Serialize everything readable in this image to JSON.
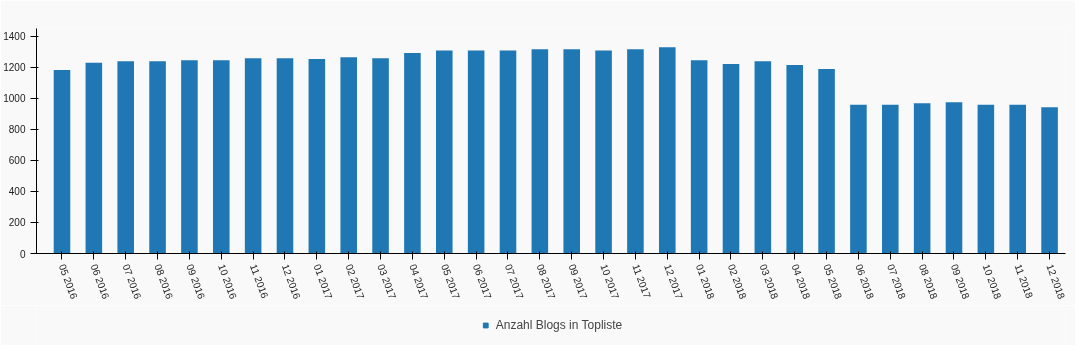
{
  "chart_data": {
    "type": "bar",
    "categories": [
      "05 2016",
      "06 2016",
      "07 2016",
      "08 2016",
      "09 2016",
      "10 2016",
      "11 2016",
      "12 2016",
      "01 2017",
      "02 2017",
      "03 2017",
      "04 2017",
      "05 2017",
      "06 2017",
      "07 2017",
      "08 2017",
      "09 2017",
      "10 2017",
      "11 2017",
      "12 2017",
      "01 2018",
      "02 2018",
      "03 2018",
      "04 2018",
      "05 2018",
      "06 2018",
      "07 2018",
      "08 2018",
      "09 2018",
      "10 2018",
      "11 2018",
      "12 2018"
    ],
    "series": [
      {
        "name": "Anzahl Blogs in Topliste",
        "color": "#1f77b4",
        "values": [
          1182,
          1229,
          1239,
          1239,
          1246,
          1246,
          1259,
          1259,
          1253,
          1265,
          1259,
          1292,
          1309,
          1309,
          1309,
          1316,
          1316,
          1309,
          1316,
          1329,
          1246,
          1222,
          1239,
          1215,
          1189,
          959,
          959,
          968,
          975,
          959,
          959,
          942
        ]
      }
    ],
    "ylim": [
      0,
      1450
    ],
    "yticks": [
      0,
      200,
      400,
      600,
      800,
      1000,
      1200,
      1400
    ],
    "grid": false,
    "legend": "bottom"
  }
}
